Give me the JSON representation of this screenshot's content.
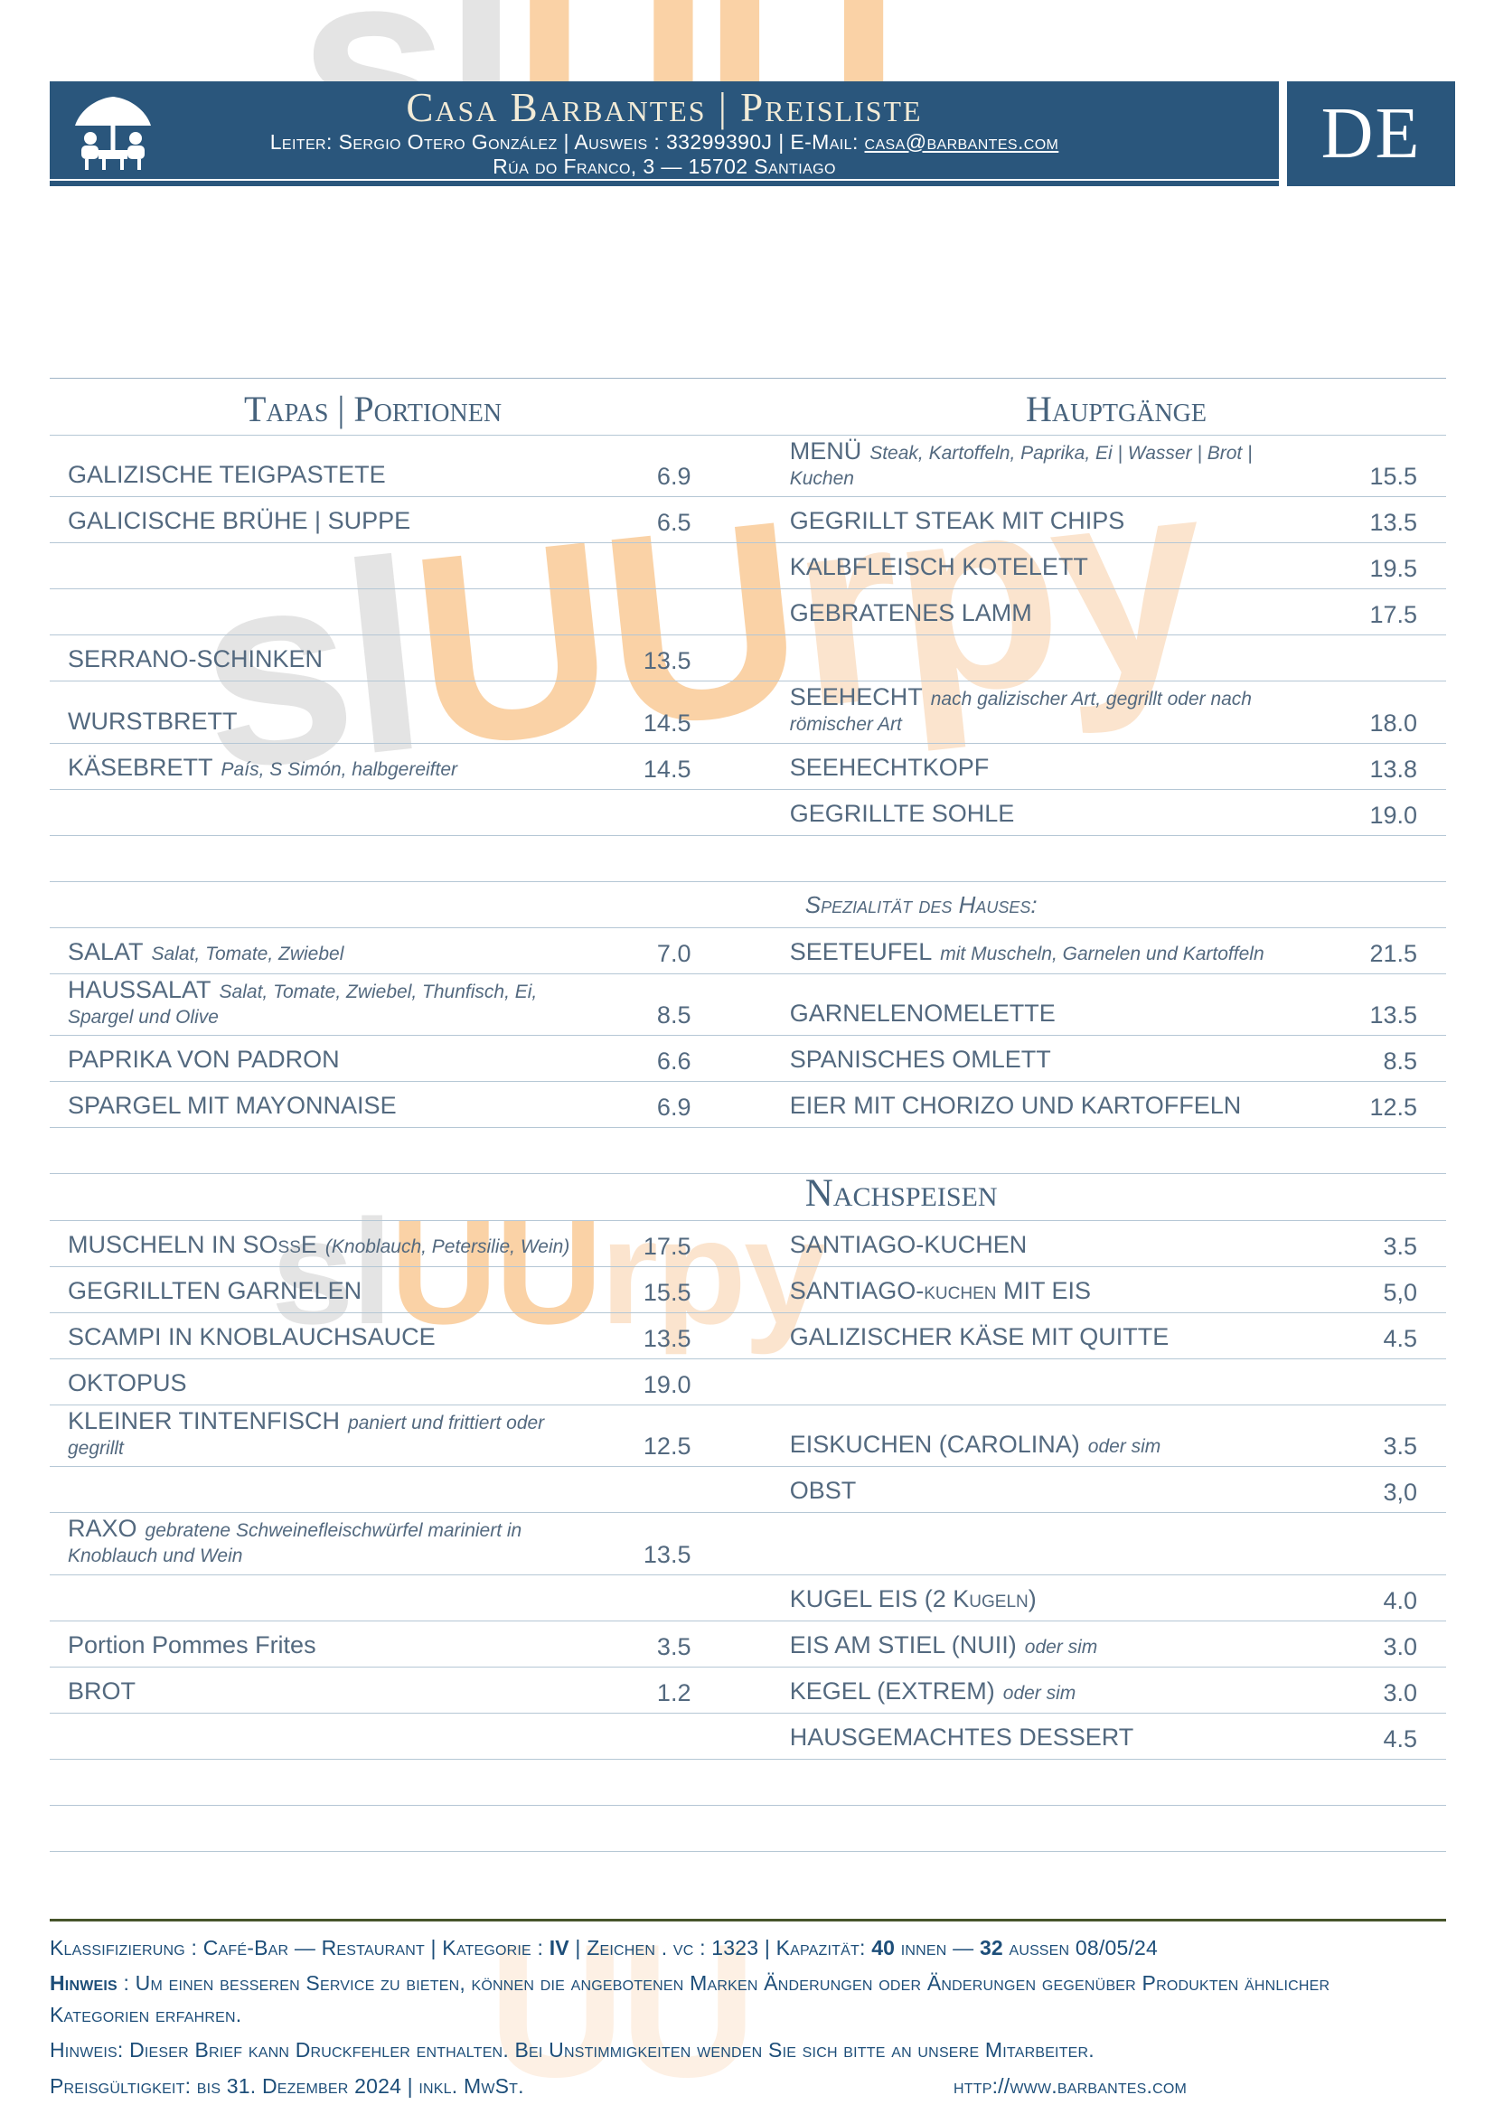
{
  "watermark": {
    "sl": "sl",
    "uu": "UU",
    "rpy": "rpy"
  },
  "header": {
    "title": "Casa Barbantes | Preisliste",
    "info_prefix": "Leiter: Sergio Otero González | Ausweis : 33299390J | E-Mail: ",
    "email": "casa@barbantes.com",
    "address": "Rúa do Franco, 3 — 15702 Santiago",
    "lang": "DE"
  },
  "rows": [
    {
      "hl": "Tapas | Portionen",
      "hr": "Hauptgänge"
    },
    {
      "l": {
        "n": "GALIZISCHE TEIGPASTETE",
        "p": "6.9"
      },
      "r": {
        "n": "MENÜ",
        "d": "Steak, Kartoffeln, Paprika, Ei | Wasser | Brot | Kuchen",
        "p": "15.5"
      }
    },
    {
      "l": {
        "n": "GALICISCHE BRÜHE | SUPPE",
        "p": "6.5"
      },
      "r": {
        "n": "GEGRILLT STEAK MIT CHIPS",
        "p": "13.5"
      }
    },
    {
      "r": {
        "n": "KALBFLEISCH KOTELETT",
        "p": "19.5"
      }
    },
    {
      "r": {
        "n": "GEBRATENES LAMM",
        "p": "17.5"
      }
    },
    {
      "l": {
        "n": "SERRANO-SCHINKEN",
        "p": "13.5"
      }
    },
    {
      "l": {
        "n": "WURSTBRETT",
        "p": "14.5"
      },
      "r": {
        "n": "SEEHECHT",
        "d": "nach galizischer Art, gegrillt oder nach römischer Art",
        "p": "18.0"
      }
    },
    {
      "l": {
        "n": "KÄSEBRETT",
        "d": "País, S Simón, halbgereifter",
        "p": "14.5"
      },
      "r": {
        "n": "SEEHECHTKOPF",
        "p": "13.8"
      }
    },
    {
      "r": {
        "n": "GEGRILLTE SOHLE",
        "p": "19.0"
      }
    },
    {
      "sp": true
    },
    {
      "subr": "Spezialität des Hauses:"
    },
    {
      "l": {
        "n": "SALAT",
        "d": "Salat, Tomate, Zwiebel",
        "p": "7.0"
      },
      "r": {
        "n": "SEETEUFEL",
        "d": "mit Muscheln, Garnelen und Kartoffeln",
        "p": "21.5"
      }
    },
    {
      "l": {
        "n": "HAUSSALAT",
        "d": "Salat, Tomate, Zwiebel, Thunfisch, Ei, Spargel und Olive",
        "p": "8.5"
      },
      "r": {
        "n": "GARNELENOMELETTE",
        "p": "13.5"
      }
    },
    {
      "l": {
        "n": "PAPRIKA VON PADRON",
        "p": "6.6"
      },
      "r": {
        "n": "SPANISCHES OMLETT",
        "p": "8.5"
      }
    },
    {
      "l": {
        "n": "SPARGEL MIT MAYONNAISE",
        "p": "6.9"
      },
      "r": {
        "n": "EIER MIT CHORIZO UND KARTOFFELN",
        "p": "12.5"
      }
    },
    {
      "sp": true
    },
    {
      "hr2": "Nachspeisen"
    },
    {
      "l": {
        "n": "MUSCHELN IN SOßE",
        "d": "(Knoblauch, Petersilie, Wein)",
        "p": "17.5"
      },
      "r": {
        "n": "SANTIAGO-KUCHEN",
        "p": "3.5"
      }
    },
    {
      "l": {
        "n": "GEGRILLTEN GARNELEN",
        "p": "15.5"
      },
      "r": {
        "n": "SANTIAGO-kuchen MIT EIS",
        "p": "5,0"
      }
    },
    {
      "l": {
        "n": "SCAMPI IN KNOBLAUCHSAUCE",
        "p": "13.5"
      },
      "r": {
        "n": "GALIZISCHER KÄSE MIT QUITTE",
        "p": "4.5"
      }
    },
    {
      "l": {
        "n": "OKTOPUS",
        "p": "19.0"
      }
    },
    {
      "l": {
        "n": "KLEINER TINTENFISCH",
        "d": "paniert und frittiert oder gegrillt",
        "p": "12.5"
      },
      "r": {
        "n": "EISKUCHEN (CAROLINA)",
        "d": "oder sim",
        "p": "3.5"
      }
    },
    {
      "r": {
        "n": "OBST",
        "p": "3,0"
      }
    },
    {
      "l": {
        "n": "RAXO",
        "d": "gebratene Schweinefleischwürfel mariniert in Knoblauch und Wein",
        "p": "13.5"
      }
    },
    {
      "r": {
        "n": "KUGEL EIS (2 Kugeln)",
        "p": "4.0"
      }
    },
    {
      "l": {
        "n": "Portion Pommes Frites",
        "p": "3.5",
        "plain": true
      },
      "r": {
        "n": "EIS AM STIEL (NUII)",
        "d": "oder sim",
        "p": "3.0"
      }
    },
    {
      "l": {
        "n": "BROT",
        "p": "1.2"
      },
      "r": {
        "n": "KEGEL (EXTREM)",
        "d": "oder sim",
        "p": "3.0"
      }
    },
    {
      "r": {
        "n": "HAUSGEMACHTES DESSERT",
        "p": "4.5"
      }
    },
    {
      "sp": true
    },
    {
      "sp": true
    }
  ],
  "footer": {
    "class": {
      "a": "Klassifizierung : Café-Bar — Restaurant | Kategorie : ",
      "b": "IV",
      "c": " | Zeichen . vc : 1323 | Kapazität: ",
      "d": "40",
      "e": " innen — ",
      "f": "32",
      "g": " außen 08/05/24"
    },
    "note1_label": "Hinweis",
    "note1_text": " : Um einen besseren Service zu bieten, können die angebotenen Marken Änderungen oder Änderungen gegenüber Produkten ähnlicher Kategorien erfahren.",
    "note2": "Hinweis: Dieser Brief kann Druckfehler enthalten. Bei Unstimmigkeiten wenden Sie sich bitte an unsere Mitarbeiter.",
    "validity": "Preisgültigkeit: bis 31. Dezember 2024 | inkl. MwSt.",
    "website": "http://www.barbantes.com"
  },
  "colors": {
    "band": "#2A567C",
    "item_text": "#53697F",
    "heading_text": "#47637D",
    "footer_text": "#1D4E79",
    "row_rule": "#B5C7D5",
    "footer_rule": "#46542A",
    "watermark_orange": "#F5A64D",
    "watermark_gray": "#C3C3C3"
  }
}
